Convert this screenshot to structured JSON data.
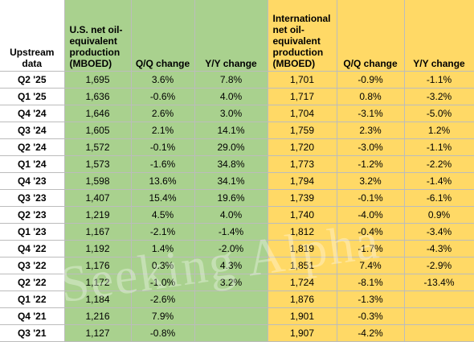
{
  "header": {
    "label": "Upstream data",
    "us_production": "U.S. net oil-equivalent production (MBOED)",
    "us_qq": "Q/Q change",
    "us_yy": "Y/Y change",
    "intl_production": "International net oil-equivalent production (MBOED)",
    "intl_qq": "Q/Q change",
    "intl_yy": "Y/Y change"
  },
  "rows": [
    {
      "q": "Q2 '25",
      "us": "1,695",
      "us_qq": "3.6%",
      "us_yy": "7.8%",
      "intl": "1,701",
      "intl_qq": "-0.9%",
      "intl_yy": "-1.1%"
    },
    {
      "q": "Q1 '25",
      "us": "1,636",
      "us_qq": "-0.6%",
      "us_yy": "4.0%",
      "intl": "1,717",
      "intl_qq": "0.8%",
      "intl_yy": "-3.2%"
    },
    {
      "q": "Q4 '24",
      "us": "1,646",
      "us_qq": "2.6%",
      "us_yy": "3.0%",
      "intl": "1,704",
      "intl_qq": "-3.1%",
      "intl_yy": "-5.0%"
    },
    {
      "q": "Q3 '24",
      "us": "1,605",
      "us_qq": "2.1%",
      "us_yy": "14.1%",
      "intl": "1,759",
      "intl_qq": "2.3%",
      "intl_yy": "1.2%"
    },
    {
      "q": "Q2 '24",
      "us": "1,572",
      "us_qq": "-0.1%",
      "us_yy": "29.0%",
      "intl": "1,720",
      "intl_qq": "-3.0%",
      "intl_yy": "-1.1%"
    },
    {
      "q": "Q1 '24",
      "us": "1,573",
      "us_qq": "-1.6%",
      "us_yy": "34.8%",
      "intl": "1,773",
      "intl_qq": "-1.2%",
      "intl_yy": "-2.2%"
    },
    {
      "q": "Q4 '23",
      "us": "1,598",
      "us_qq": "13.6%",
      "us_yy": "34.1%",
      "intl": "1,794",
      "intl_qq": "3.2%",
      "intl_yy": "-1.4%"
    },
    {
      "q": "Q3 '23",
      "us": "1,407",
      "us_qq": "15.4%",
      "us_yy": "19.6%",
      "intl": "1,739",
      "intl_qq": "-0.1%",
      "intl_yy": "-6.1%"
    },
    {
      "q": "Q2 '23",
      "us": "1,219",
      "us_qq": "4.5%",
      "us_yy": "4.0%",
      "intl": "1,740",
      "intl_qq": "-4.0%",
      "intl_yy": "0.9%"
    },
    {
      "q": "Q1 '23",
      "us": "1,167",
      "us_qq": "-2.1%",
      "us_yy": "-1.4%",
      "intl": "1,812",
      "intl_qq": "-0.4%",
      "intl_yy": "-3.4%"
    },
    {
      "q": "Q4 '22",
      "us": "1,192",
      "us_qq": "1.4%",
      "us_yy": "-2.0%",
      "intl": "1,819",
      "intl_qq": "-1.7%",
      "intl_yy": "-4.3%"
    },
    {
      "q": "Q3 '22",
      "us": "1,176",
      "us_qq": "0.3%",
      "us_yy": "4.3%",
      "intl": "1,851",
      "intl_qq": "7.4%",
      "intl_yy": "-2.9%"
    },
    {
      "q": "Q2 '22",
      "us": "1,172",
      "us_qq": "-1.0%",
      "us_yy": "3.2%",
      "intl": "1,724",
      "intl_qq": "-8.1%",
      "intl_yy": "-13.4%"
    },
    {
      "q": "Q1 '22",
      "us": "1,184",
      "us_qq": "-2.6%",
      "us_yy": "",
      "intl": "1,876",
      "intl_qq": "-1.3%",
      "intl_yy": ""
    },
    {
      "q": "Q4 '21",
      "us": "1,216",
      "us_qq": "7.9%",
      "us_yy": "",
      "intl": "1,901",
      "intl_qq": "-0.3%",
      "intl_yy": ""
    },
    {
      "q": "Q3 '21",
      "us": "1,127",
      "us_qq": "-0.8%",
      "us_yy": "",
      "intl": "1,907",
      "intl_qq": "-4.2%",
      "intl_yy": ""
    }
  ],
  "watermark": "Seeking Alpha",
  "colors": {
    "us": "#a9d18e",
    "intl": "#ffd966"
  }
}
